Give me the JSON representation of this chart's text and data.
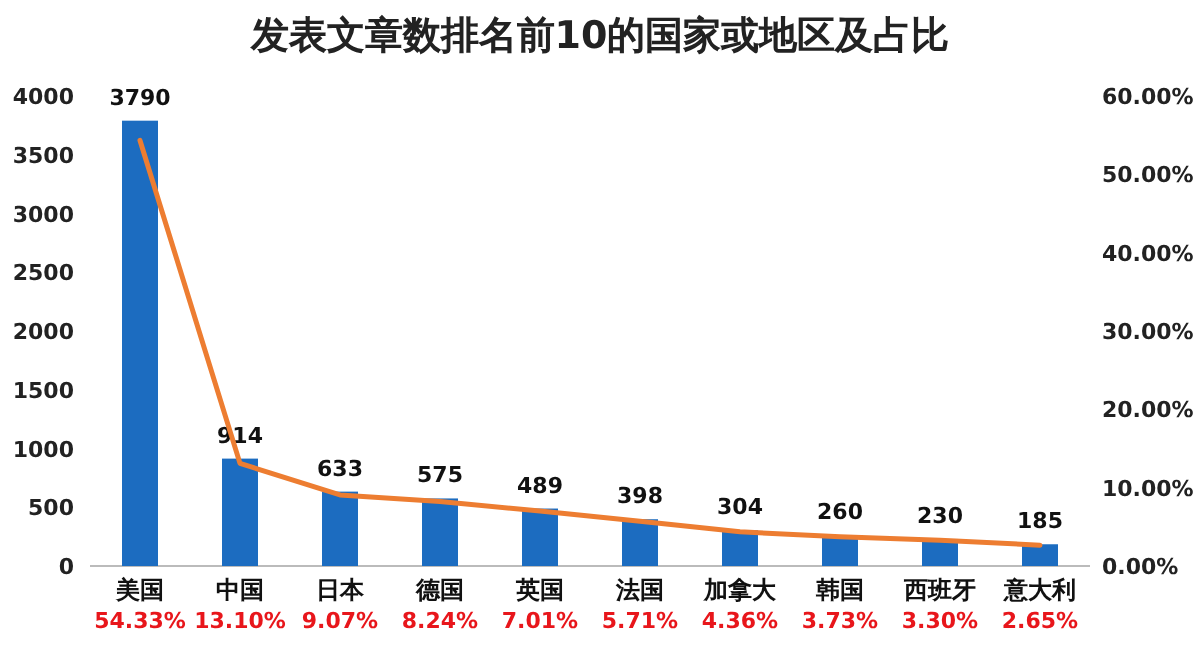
{
  "chart_data": {
    "type": "bar",
    "title": "发表文章数排名前10的国家或地区及占比",
    "categories": [
      "美国",
      "中国",
      "日本",
      "德国",
      "英国",
      "法国",
      "加拿大",
      "韩国",
      "西班牙",
      "意大利"
    ],
    "series": [
      {
        "color": "#1c6cc0",
        "data_labels": true,
        "values": [
          3790,
          914,
          633,
          575,
          489,
          398,
          304,
          260,
          230,
          185
        ]
      },
      {
        "type": "line",
        "axis": "y2",
        "color": "#ed7d31",
        "values": [
          54.33,
          13.1,
          9.07,
          8.24,
          7.01,
          5.71,
          4.36,
          3.73,
          3.3,
          2.65
        ],
        "value_labels": [
          "54.33%",
          "13.10%",
          "9.07%",
          "8.24%",
          "7.01%",
          "5.71%",
          "4.36%",
          "3.73%",
          "3.30%",
          "2.65%"
        ]
      }
    ],
    "ylim": [
      0,
      4000
    ],
    "yticks": [
      0,
      500,
      1000,
      1500,
      2000,
      2500,
      3000,
      3500,
      4000
    ],
    "y2lim": [
      0,
      60
    ],
    "y2ticks": [
      {
        "value": 0,
        "label": "0.00%"
      },
      {
        "value": 10,
        "label": "10.00%"
      },
      {
        "value": 20,
        "label": "20.00%"
      },
      {
        "value": 30,
        "label": "30.00%"
      },
      {
        "value": 40,
        "label": "40.00%"
      },
      {
        "value": 50,
        "label": "50.00%"
      },
      {
        "value": 60,
        "label": "60.00%"
      }
    ]
  }
}
